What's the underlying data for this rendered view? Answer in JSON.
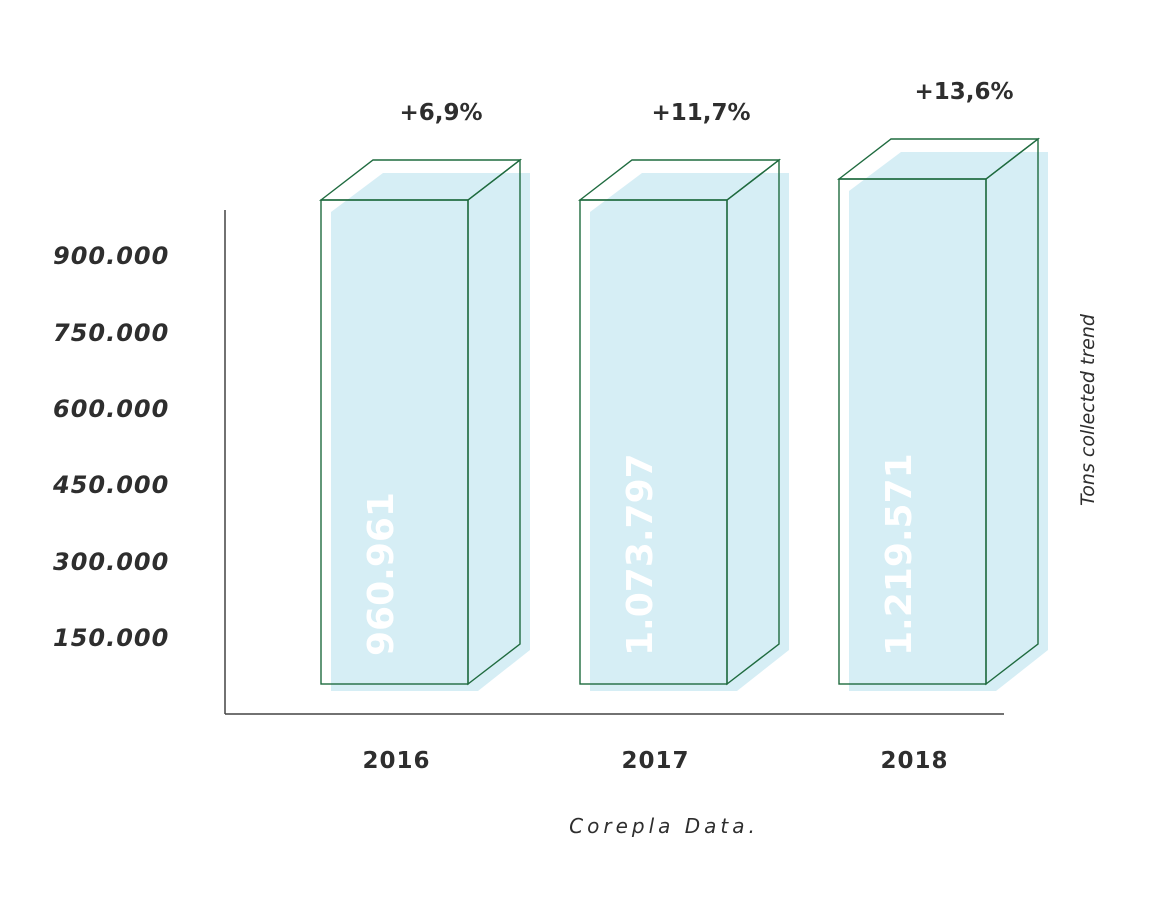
{
  "chart_data": {
    "type": "bar",
    "categories": [
      "2016",
      "2017",
      "2018"
    ],
    "values": [
      960961,
      1073797,
      1219571
    ],
    "value_labels": [
      "960.961",
      "1.073.797",
      "1.219.571"
    ],
    "growth_labels": [
      "+6,9%",
      "+11,7%",
      "+13,6%"
    ],
    "y_ticks": [
      "150.000",
      "300.000",
      "450.000",
      "600.000",
      "750.000",
      "900.000"
    ],
    "side_label": "Tons collected trend",
    "source": "Corepla Data.",
    "colors": {
      "bar_fill": "#d6eef5",
      "bar_outline": "#1f6b3f",
      "axis": "#444444",
      "text": "#2e2e2e"
    }
  }
}
